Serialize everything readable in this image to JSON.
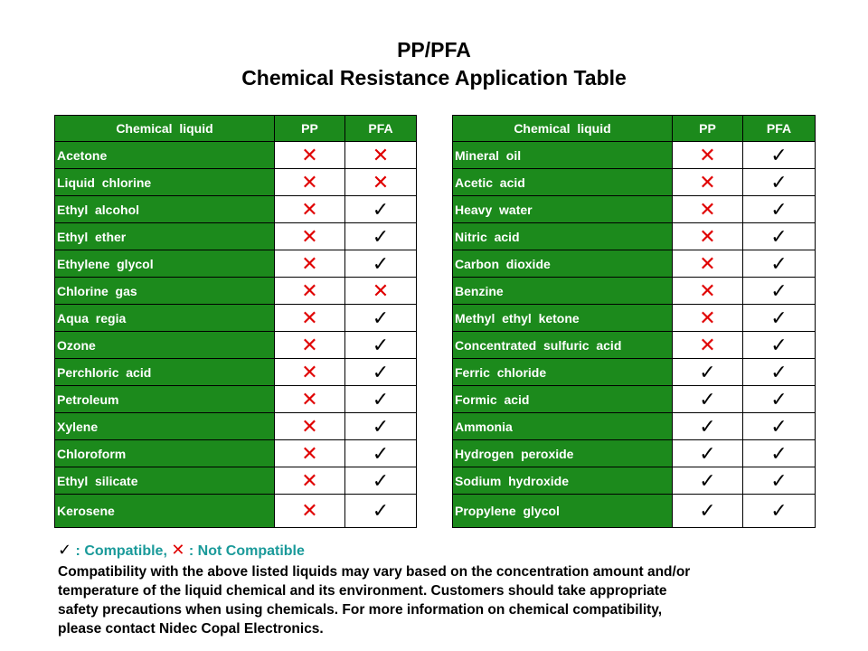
{
  "title": {
    "line1": "PP/PFA",
    "line2": "Chemical Resistance Application Table"
  },
  "columns": {
    "name": "Chemical  liquid",
    "pp": "PP",
    "pfa": "PFA"
  },
  "symbols": {
    "compatible": "✓",
    "not_compatible": "✕",
    "compatible_color": "#000000",
    "not_compatible_color": "#e00000",
    "header_green": "#1c8a1c"
  },
  "left_table": [
    {
      "name": "Acetone",
      "pp": "x",
      "pfa": "x"
    },
    {
      "name": "Liquid  chlorine",
      "pp": "x",
      "pfa": "x"
    },
    {
      "name": "Ethyl  alcohol",
      "pp": "x",
      "pfa": "ok"
    },
    {
      "name": "Ethyl  ether",
      "pp": "x",
      "pfa": "ok"
    },
    {
      "name": "Ethylene  glycol",
      "pp": "x",
      "pfa": "ok"
    },
    {
      "name": "Chlorine  gas",
      "pp": "x",
      "pfa": "x"
    },
    {
      "name": "Aqua  regia",
      "pp": "x",
      "pfa": "ok"
    },
    {
      "name": "Ozone",
      "pp": "x",
      "pfa": "ok"
    },
    {
      "name": "Perchloric  acid",
      "pp": "x",
      "pfa": "ok"
    },
    {
      "name": "Petroleum",
      "pp": "x",
      "pfa": "ok"
    },
    {
      "name": "Xylene",
      "pp": "x",
      "pfa": "ok"
    },
    {
      "name": "Chloroform",
      "pp": "x",
      "pfa": "ok"
    },
    {
      "name": "Ethyl  silicate",
      "pp": "x",
      "pfa": "ok"
    },
    {
      "name": "Kerosene",
      "pp": "x",
      "pfa": "ok"
    }
  ],
  "right_table": [
    {
      "name": "Mineral  oil",
      "pp": "x",
      "pfa": "ok"
    },
    {
      "name": "Acetic  acid",
      "pp": "x",
      "pfa": "ok"
    },
    {
      "name": "Heavy  water",
      "pp": "x",
      "pfa": "ok"
    },
    {
      "name": "Nitric  acid",
      "pp": "x",
      "pfa": "ok"
    },
    {
      "name": "Carbon  dioxide",
      "pp": "x",
      "pfa": "ok"
    },
    {
      "name": "Benzine",
      "pp": "x",
      "pfa": "ok"
    },
    {
      "name": "Methyl  ethyl  ketone",
      "pp": "x",
      "pfa": "ok"
    },
    {
      "name": "Concentrated  sulfuric  acid",
      "pp": "x",
      "pfa": "ok"
    },
    {
      "name": "Ferric  chloride",
      "pp": "ok",
      "pfa": "ok"
    },
    {
      "name": "Formic  acid",
      "pp": "ok",
      "pfa": "ok"
    },
    {
      "name": "Ammonia",
      "pp": "ok",
      "pfa": "ok"
    },
    {
      "name": "Hydrogen  peroxide",
      "pp": "ok",
      "pfa": "ok"
    },
    {
      "name": "Sodium  hydroxide",
      "pp": "ok",
      "pfa": "ok"
    },
    {
      "name": "Propylene  glycol",
      "pp": "ok",
      "pfa": "ok"
    }
  ],
  "legend": {
    "compatible_text": ": Compatible,",
    "not_compatible_text": ": Not Compatible"
  },
  "note": {
    "line1": "Compatibility with the above listed liquids may vary based on the concentration amount and/or",
    "line2": "temperature of the liquid chemical and its environment. Customers should take appropriate",
    "line3": "safety precautions when using chemicals. For more information on chemical compatibility,",
    "line4": "please contact Nidec Copal Electronics."
  }
}
